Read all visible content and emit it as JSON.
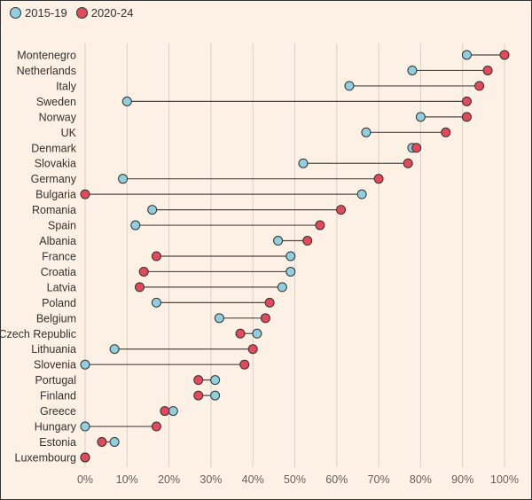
{
  "legend": {
    "items": [
      {
        "label": "2015-19",
        "color": "#8fcfe0"
      },
      {
        "label": "2020-24",
        "color": "#e24a5b"
      }
    ]
  },
  "chart_data": {
    "type": "dumbbell",
    "xlim": [
      0,
      100
    ],
    "x_ticks": [
      0,
      10,
      20,
      30,
      40,
      50,
      60,
      70,
      80,
      90,
      100
    ],
    "x_tick_labels": [
      "0%",
      "10%",
      "20%",
      "30%",
      "40%",
      "50%",
      "60%",
      "70%",
      "80%",
      "90%",
      "100%"
    ],
    "grid": "vertical",
    "legend_position": "top-left",
    "categories": [
      "Montenegro",
      "Netherlands",
      "Italy",
      "Sweden",
      "Norway",
      "UK",
      "Denmark",
      "Slovakia",
      "Germany",
      "Bulgaria",
      "Romania",
      "Spain",
      "Albania",
      "France",
      "Croatia",
      "Latvia",
      "Poland",
      "Belgium",
      "Czech Republic",
      "Lithuania",
      "Slovenia",
      "Portugal",
      "Finland",
      "Greece",
      "Hungary",
      "Estonia",
      "Luxembourg"
    ],
    "series": [
      {
        "name": "2015-19",
        "color": "#8fcfe0",
        "values": [
          91,
          78,
          63,
          10,
          80,
          67,
          78,
          52,
          9,
          66,
          16,
          12,
          46,
          49,
          49,
          47,
          17,
          32,
          41,
          7,
          0,
          31,
          31,
          21,
          0,
          7,
          0
        ]
      },
      {
        "name": "2020-24",
        "color": "#e24a5b",
        "values": [
          100,
          96,
          94,
          91,
          91,
          86,
          79,
          77,
          70,
          0,
          61,
          56,
          53,
          17,
          14,
          13,
          44,
          43,
          37,
          40,
          38,
          27,
          27,
          19,
          17,
          4,
          0
        ]
      }
    ]
  },
  "colors": {
    "background": "#fdf1e5",
    "grid": "#d8cfc6",
    "connector": "#4d4845",
    "marker_stroke": "#33302e"
  }
}
